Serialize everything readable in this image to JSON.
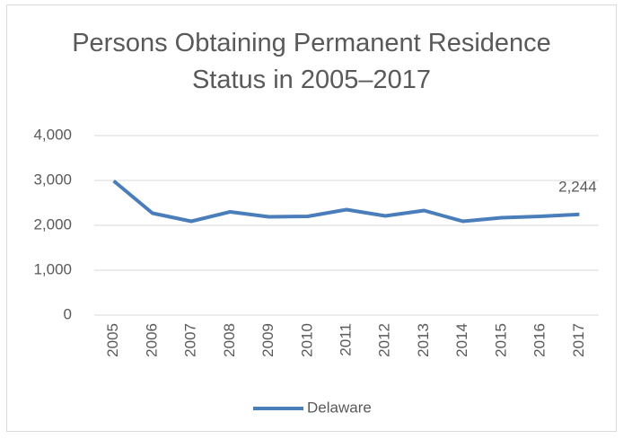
{
  "chart_data": {
    "type": "line",
    "title": "Persons Obtaining Permanent Residence Status in 2005–2017",
    "categories": [
      "2005",
      "2006",
      "2007",
      "2008",
      "2009",
      "2010",
      "2011",
      "2012",
      "2013",
      "2014",
      "2015",
      "2016",
      "2017"
    ],
    "series": [
      {
        "name": "Delaware",
        "color": "#4a7ebb",
        "values": [
          2990,
          2270,
          2090,
          2300,
          2190,
          2200,
          2350,
          2210,
          2330,
          2090,
          2170,
          2200,
          2244
        ],
        "value_labels": [
          null,
          null,
          null,
          null,
          null,
          null,
          null,
          null,
          null,
          null,
          null,
          null,
          "2,244"
        ]
      }
    ],
    "ylim": [
      0,
      4000
    ],
    "yticks": [
      0,
      {
        "value": 1000,
        "label": "1,000"
      },
      {
        "value": 2000,
        "label": "2,000"
      },
      {
        "value": 3000,
        "label": "3,000"
      },
      {
        "value": 4000,
        "label": "4,000"
      }
    ],
    "grid": true,
    "legend": "bottom"
  }
}
